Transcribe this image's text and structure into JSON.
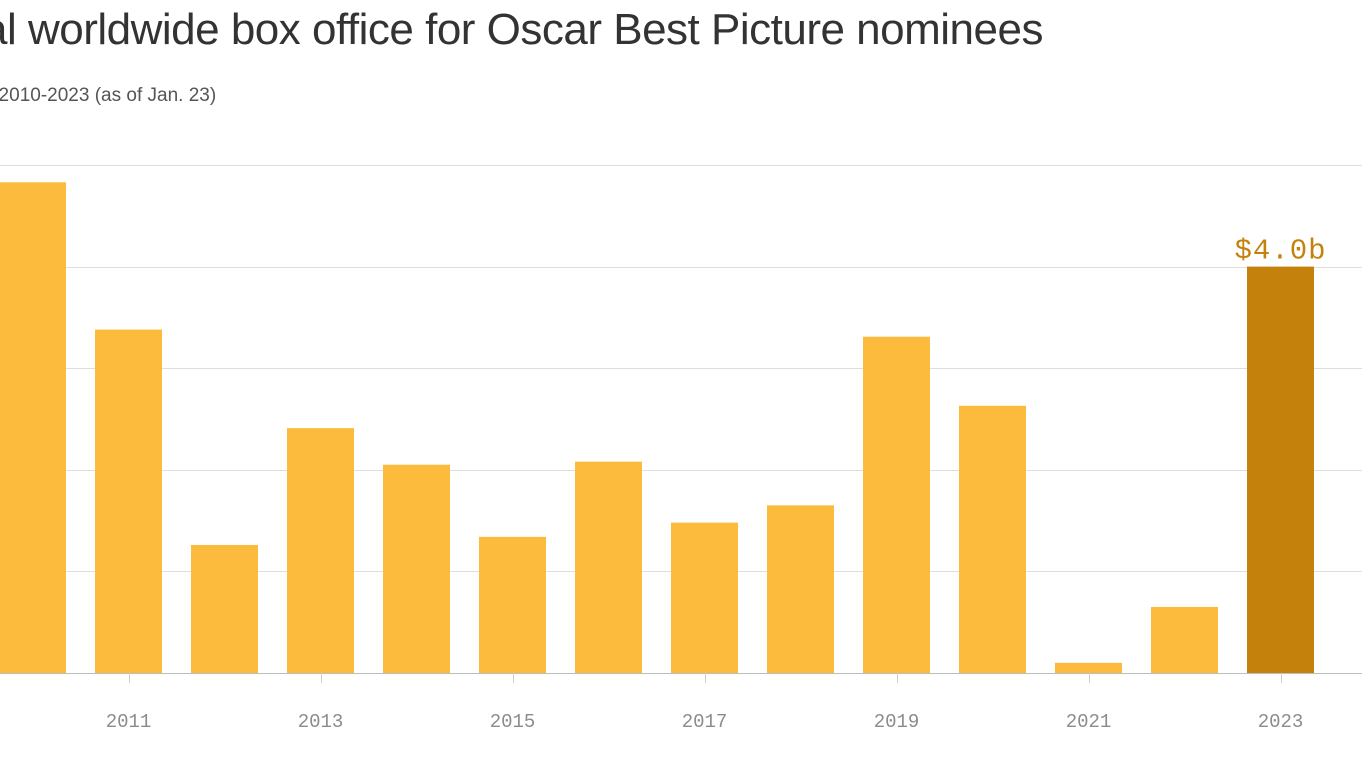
{
  "chart_data": {
    "type": "bar",
    "title": "Total worldwide box office for Oscar Best Picture nominees",
    "title_visible": "al worldwide box office for Oscar Best Picture nominees",
    "subtitle": "2010-2023 (as of Jan. 23)",
    "subtitle_visible": ", 2010-2023 (as of Jan. 23)",
    "categories": [
      2010,
      2011,
      2012,
      2013,
      2014,
      2015,
      2016,
      2017,
      2018,
      2019,
      2020,
      2021,
      2022,
      2023
    ],
    "values": [
      4.83,
      3.38,
      1.26,
      2.41,
      2.05,
      1.34,
      2.08,
      1.48,
      1.65,
      3.31,
      2.63,
      0.1,
      0.65,
      4.0
    ],
    "tick_labels": [
      "2011",
      "2013",
      "2015",
      "2017",
      "2019",
      "2021",
      "2023"
    ],
    "data_labels": [
      {
        "category": 2023,
        "text": "$4.0b"
      }
    ],
    "ylim": [
      0,
      5
    ],
    "grid": true,
    "xlabel": "",
    "ylabel": "",
    "colors": {
      "bar": "#FDBB3E",
      "highlight": "#C4820C",
      "highlight_label": "#C4820C"
    },
    "highlight_category": 2023
  }
}
